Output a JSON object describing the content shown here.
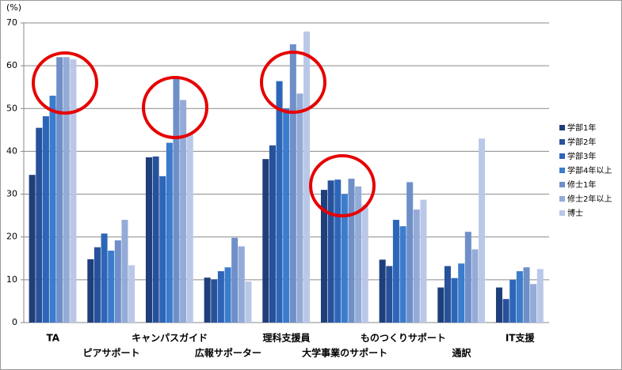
{
  "chart_data": {
    "type": "bar",
    "unit_label": "(%)",
    "categories": [
      "TA",
      "ピアサポート",
      "キャンパスガイド",
      "広報サポーター",
      "理科支援員",
      "大学事業のサポート",
      "ものつくりサポート",
      "通訳",
      "IT支援"
    ],
    "series": [
      {
        "name": "学部1年",
        "color": "#1f3f7a",
        "values": [
          34.5,
          14.8,
          38.6,
          10.5,
          38.2,
          31,
          14.7,
          8.2,
          8.2
        ]
      },
      {
        "name": "学部2年",
        "color": "#27519a",
        "values": [
          45.5,
          17.6,
          38.8,
          10.1,
          41.4,
          33.2,
          13.2,
          13.2,
          5.5
        ]
      },
      {
        "name": "学部3年",
        "color": "#2d66b8",
        "values": [
          48.2,
          20.8,
          34.2,
          12,
          56.4,
          33.4,
          24,
          10.4,
          10
        ]
      },
      {
        "name": "学部4年以上",
        "color": "#3b7ccc",
        "values": [
          53,
          16.8,
          42,
          12.9,
          50,
          30,
          22.5,
          13.8,
          12
        ]
      },
      {
        "name": "修士1年",
        "color": "#6f8fc8",
        "values": [
          62,
          19.2,
          57,
          19.8,
          65,
          33.6,
          32.8,
          21.2,
          12.9
        ]
      },
      {
        "name": "修士2年以上",
        "color": "#94abd8",
        "values": [
          62,
          24,
          52,
          17.8,
          53.5,
          31.8,
          26.4,
          17.1,
          9
        ]
      },
      {
        "name": "博士",
        "color": "#bac8e8",
        "values": [
          61.5,
          13.4,
          44,
          9.6,
          68,
          27.5,
          28.7,
          43,
          12.5
        ]
      }
    ],
    "ylim": [
      0,
      70
    ],
    "yticks": [
      0,
      10,
      20,
      30,
      40,
      50,
      60,
      70
    ],
    "grid": true,
    "legend": "right"
  }
}
